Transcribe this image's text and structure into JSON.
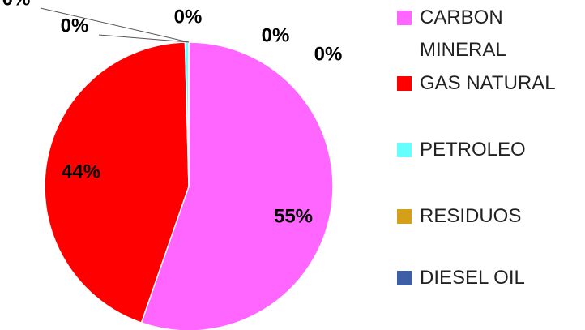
{
  "chart_data": {
    "type": "pie",
    "categories": [
      "CARBON MINERAL",
      "GAS NATURAL",
      "PETROLEO",
      "RESIDUOS",
      "DIESEL OIL",
      null,
      null
    ],
    "values": [
      55,
      44,
      0.4,
      0,
      0,
      0,
      0
    ],
    "value_labels": [
      "55%",
      "44%",
      "0%",
      "0%",
      "0%",
      "0%",
      "0%"
    ],
    "colors": [
      "#ff66ff",
      "#ff0000",
      "#66ffff",
      "#d4a017",
      "#3c5fa6",
      "#888888",
      "#888888"
    ],
    "legend": "right"
  }
}
